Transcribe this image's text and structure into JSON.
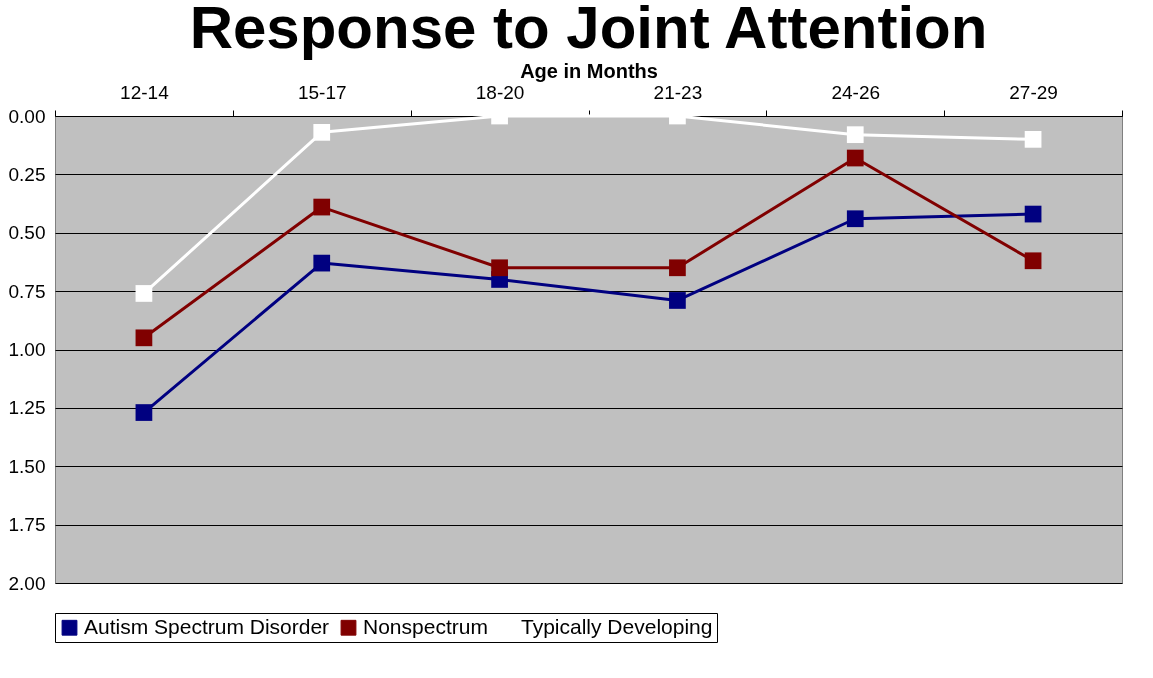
{
  "chart_data": {
    "type": "line",
    "title": "Response to Joint Attention",
    "xlabel": "Age in Months",
    "categories": [
      "12-14",
      "15-17",
      "18-20",
      "21-23",
      "24-26",
      "27-29"
    ],
    "series": [
      {
        "name": "Autism Spectrum Disorder",
        "color": "#000080",
        "values": [
          1.27,
          0.63,
          0.7,
          0.79,
          0.44,
          0.42
        ]
      },
      {
        "name": "Nonspectrum",
        "color": "#800000",
        "values": [
          0.95,
          0.39,
          0.65,
          0.65,
          0.18,
          0.62
        ]
      },
      {
        "name": "Typically Developing",
        "color": "#ffffff",
        "values": [
          0.76,
          0.07,
          0.0,
          0.0,
          0.08,
          0.1
        ]
      }
    ],
    "ylim": [
      2,
      0
    ],
    "yticks": [
      {
        "value": 0,
        "label": "0.00"
      },
      {
        "value": 0.25,
        "label": "0.25"
      },
      {
        "value": 0.5,
        "label": "0.50"
      },
      {
        "value": 0.75,
        "label": "0.75"
      },
      {
        "value": 1,
        "label": "1.00"
      },
      {
        "value": 1.25,
        "label": "1.25"
      },
      {
        "value": 1.5,
        "label": "1.50"
      },
      {
        "value": 1.75,
        "label": "1.75"
      },
      {
        "value": 2,
        "label": "2.00"
      }
    ],
    "grid": "y",
    "legend": "bottom",
    "marker": "square",
    "line_style": "solid"
  }
}
